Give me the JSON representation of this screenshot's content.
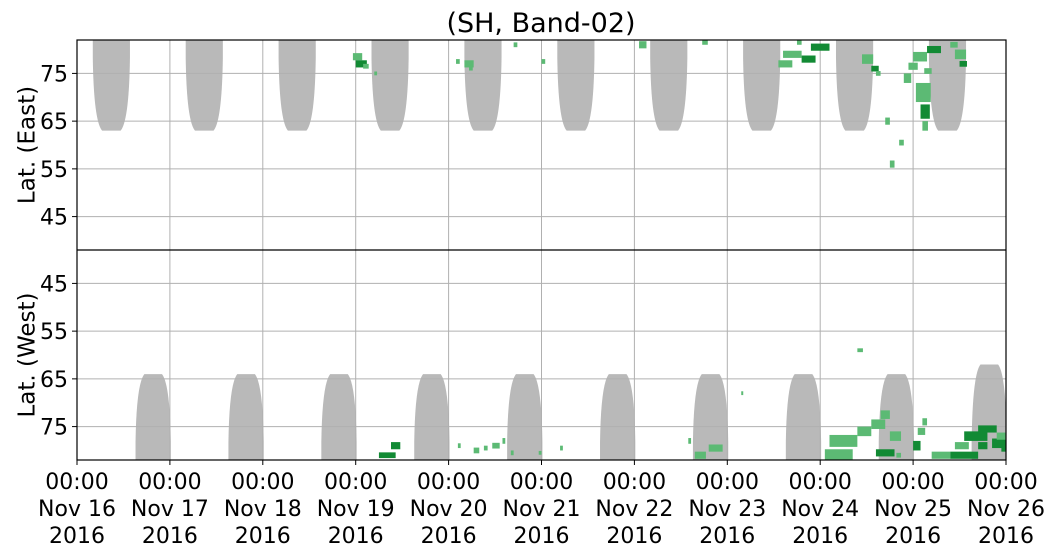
{
  "chart_data": {
    "type": "heatmap",
    "title": "(SH, Band-02)",
    "x_axis": {
      "range": [
        "2016-11-16T00:00",
        "2016-11-26T00:00"
      ],
      "ticks": [
        {
          "time": "00:00",
          "day": "Nov 16",
          "year": "2016"
        },
        {
          "time": "00:00",
          "day": "Nov 17",
          "year": "2016"
        },
        {
          "time": "00:00",
          "day": "Nov 18",
          "year": "2016"
        },
        {
          "time": "00:00",
          "day": "Nov 19",
          "year": "2016"
        },
        {
          "time": "00:00",
          "day": "Nov 20",
          "year": "2016"
        },
        {
          "time": "00:00",
          "day": "Nov 21",
          "year": "2016"
        },
        {
          "time": "00:00",
          "day": "Nov 22",
          "year": "2016"
        },
        {
          "time": "00:00",
          "day": "Nov 23",
          "year": "2016"
        },
        {
          "time": "00:00",
          "day": "Nov 24",
          "year": "2016"
        },
        {
          "time": "00:00",
          "day": "Nov 25",
          "year": "2016"
        },
        {
          "time": "00:00",
          "day": "Nov 26",
          "year": "2016"
        }
      ]
    },
    "panels": [
      {
        "name": "east",
        "ylabel": "Lat. (East)",
        "ylim": [
          38,
          82
        ],
        "ticks": [
          45,
          55,
          65,
          75
        ],
        "tick_labels": [
          "45",
          "55",
          "65",
          "75"
        ]
      },
      {
        "name": "west",
        "ylabel": "Lat. (West)",
        "ylim": [
          82,
          38
        ],
        "ticks": [
          75,
          65,
          55,
          45
        ],
        "tick_labels": [
          "75",
          "65",
          "55",
          "45"
        ]
      }
    ],
    "grid": true,
    "colors": {
      "coverage_gap": "#b9b9b9",
      "detection_light": "#5cba74",
      "detection_dark": "#128a34",
      "grid": "#b0b0b0"
    },
    "gray_coverage_lobes": {
      "east": [
        {
          "day_center": 0.37,
          "half_width_days": 0.2,
          "lat_bottom": 63
        },
        {
          "day_center": 1.37,
          "half_width_days": 0.2,
          "lat_bottom": 63
        },
        {
          "day_center": 2.37,
          "half_width_days": 0.2,
          "lat_bottom": 63
        },
        {
          "day_center": 3.37,
          "half_width_days": 0.2,
          "lat_bottom": 63
        },
        {
          "day_center": 4.37,
          "half_width_days": 0.2,
          "lat_bottom": 63
        },
        {
          "day_center": 5.37,
          "half_width_days": 0.2,
          "lat_bottom": 63
        },
        {
          "day_center": 6.37,
          "half_width_days": 0.2,
          "lat_bottom": 63
        },
        {
          "day_center": 7.37,
          "half_width_days": 0.2,
          "lat_bottom": 63
        },
        {
          "day_center": 8.37,
          "half_width_days": 0.2,
          "lat_bottom": 63
        },
        {
          "day_center": 9.37,
          "half_width_days": 0.2,
          "lat_bottom": 63
        }
      ],
      "west": [
        {
          "day_center": 0.82,
          "half_width_days": 0.19,
          "lat_top": 64
        },
        {
          "day_center": 1.82,
          "half_width_days": 0.19,
          "lat_top": 64
        },
        {
          "day_center": 2.82,
          "half_width_days": 0.19,
          "lat_top": 64
        },
        {
          "day_center": 3.82,
          "half_width_days": 0.19,
          "lat_top": 64
        },
        {
          "day_center": 4.82,
          "half_width_days": 0.19,
          "lat_top": 64
        },
        {
          "day_center": 5.82,
          "half_width_days": 0.19,
          "lat_top": 64
        },
        {
          "day_center": 6.82,
          "half_width_days": 0.19,
          "lat_top": 64
        },
        {
          "day_center": 7.82,
          "half_width_days": 0.19,
          "lat_top": 64
        },
        {
          "day_center": 8.82,
          "half_width_days": 0.19,
          "lat_top": 64
        },
        {
          "day_center": 9.82,
          "half_width_days": 0.19,
          "lat_top": 62
        }
      ]
    },
    "detections": [
      {
        "panel": "east",
        "day": 2.97,
        "lat": 78.5,
        "w": 0.1,
        "h": 1.5,
        "dark": false
      },
      {
        "panel": "east",
        "day": 3.0,
        "lat": 77.0,
        "w": 0.12,
        "h": 1.5,
        "dark": true
      },
      {
        "panel": "east",
        "day": 3.08,
        "lat": 76.5,
        "w": 0.06,
        "h": 1.0,
        "dark": false
      },
      {
        "panel": "east",
        "day": 3.2,
        "lat": 75.0,
        "w": 0.03,
        "h": 0.8,
        "dark": false
      },
      {
        "panel": "west",
        "day": 3.25,
        "lat": 81.0,
        "w": 0.18,
        "h": 1.2,
        "dark": true
      },
      {
        "panel": "west",
        "day": 3.38,
        "lat": 79.0,
        "w": 0.1,
        "h": 1.5,
        "dark": true
      },
      {
        "panel": "east",
        "day": 4.08,
        "lat": 77.5,
        "w": 0.04,
        "h": 1.0,
        "dark": false
      },
      {
        "panel": "east",
        "day": 4.17,
        "lat": 77.0,
        "w": 0.1,
        "h": 1.5,
        "dark": false
      },
      {
        "panel": "east",
        "day": 4.22,
        "lat": 76.0,
        "w": 0.04,
        "h": 0.8,
        "dark": false
      },
      {
        "panel": "west",
        "day": 4.1,
        "lat": 79.0,
        "w": 0.03,
        "h": 1.0,
        "dark": false
      },
      {
        "panel": "west",
        "day": 4.27,
        "lat": 80.0,
        "w": 0.06,
        "h": 1.2,
        "dark": false
      },
      {
        "panel": "west",
        "day": 4.38,
        "lat": 79.5,
        "w": 0.04,
        "h": 1.0,
        "dark": false
      },
      {
        "panel": "west",
        "day": 4.47,
        "lat": 79.0,
        "w": 0.08,
        "h": 1.2,
        "dark": false
      },
      {
        "panel": "west",
        "day": 4.58,
        "lat": 78.0,
        "w": 0.03,
        "h": 1.2,
        "dark": false
      },
      {
        "panel": "west",
        "day": 4.67,
        "lat": 80.5,
        "w": 0.03,
        "h": 1.0,
        "dark": false
      },
      {
        "panel": "east",
        "day": 4.7,
        "lat": 81.0,
        "w": 0.04,
        "h": 1.0,
        "dark": false
      },
      {
        "panel": "east",
        "day": 5.0,
        "lat": 77.5,
        "w": 0.04,
        "h": 1.0,
        "dark": false
      },
      {
        "panel": "west",
        "day": 4.97,
        "lat": 80.5,
        "w": 0.03,
        "h": 0.8,
        "dark": false
      },
      {
        "panel": "west",
        "day": 5.2,
        "lat": 79.5,
        "w": 0.03,
        "h": 1.0,
        "dark": false
      },
      {
        "panel": "east",
        "day": 6.05,
        "lat": 81.0,
        "w": 0.08,
        "h": 1.5,
        "dark": false
      },
      {
        "panel": "east",
        "day": 6.73,
        "lat": 81.5,
        "w": 0.06,
        "h": 1.0,
        "dark": false
      },
      {
        "panel": "west",
        "day": 6.65,
        "lat": 81.0,
        "w": 0.12,
        "h": 1.5,
        "dark": false
      },
      {
        "panel": "west",
        "day": 6.8,
        "lat": 79.5,
        "w": 0.15,
        "h": 1.5,
        "dark": false
      },
      {
        "panel": "west",
        "day": 6.58,
        "lat": 78.0,
        "w": 0.03,
        "h": 1.2,
        "dark": false
      },
      {
        "panel": "west",
        "day": 7.15,
        "lat": 68.0,
        "w": 0.02,
        "h": 0.8,
        "dark": false
      },
      {
        "panel": "east",
        "day": 7.55,
        "lat": 77.0,
        "w": 0.15,
        "h": 1.5,
        "dark": false
      },
      {
        "panel": "east",
        "day": 7.6,
        "lat": 79.0,
        "w": 0.2,
        "h": 1.5,
        "dark": false
      },
      {
        "panel": "east",
        "day": 7.8,
        "lat": 78.0,
        "w": 0.15,
        "h": 1.5,
        "dark": true
      },
      {
        "panel": "east",
        "day": 7.9,
        "lat": 80.5,
        "w": 0.2,
        "h": 1.5,
        "dark": true
      },
      {
        "panel": "east",
        "day": 7.75,
        "lat": 81.5,
        "w": 0.05,
        "h": 1.0,
        "dark": false
      },
      {
        "panel": "west",
        "day": 8.05,
        "lat": 81.0,
        "w": 0.3,
        "h": 2.5,
        "dark": false
      },
      {
        "panel": "west",
        "day": 8.1,
        "lat": 78.0,
        "w": 0.3,
        "h": 2.5,
        "dark": false
      },
      {
        "panel": "west",
        "day": 8.4,
        "lat": 76.0,
        "w": 0.15,
        "h": 2.0,
        "dark": false
      },
      {
        "panel": "west",
        "day": 8.55,
        "lat": 74.5,
        "w": 0.15,
        "h": 2.0,
        "dark": false
      },
      {
        "panel": "west",
        "day": 8.65,
        "lat": 72.5,
        "w": 0.1,
        "h": 1.8,
        "dark": false
      },
      {
        "panel": "east",
        "day": 8.45,
        "lat": 78.0,
        "w": 0.12,
        "h": 2.0,
        "dark": false
      },
      {
        "panel": "east",
        "day": 8.55,
        "lat": 76.0,
        "w": 0.08,
        "h": 1.2,
        "dark": true
      },
      {
        "panel": "east",
        "day": 8.6,
        "lat": 75.0,
        "w": 0.05,
        "h": 1.0,
        "dark": false
      },
      {
        "panel": "east",
        "day": 8.7,
        "lat": 65.0,
        "w": 0.05,
        "h": 1.5,
        "dark": false
      },
      {
        "panel": "east",
        "day": 8.75,
        "lat": 56.0,
        "w": 0.05,
        "h": 1.5,
        "dark": false
      },
      {
        "panel": "east",
        "day": 8.85,
        "lat": 60.5,
        "w": 0.05,
        "h": 1.2,
        "dark": false
      },
      {
        "panel": "east",
        "day": 8.9,
        "lat": 74.0,
        "w": 0.08,
        "h": 2.0,
        "dark": false
      },
      {
        "panel": "east",
        "day": 8.95,
        "lat": 76.5,
        "w": 0.1,
        "h": 1.5,
        "dark": false
      },
      {
        "panel": "east",
        "day": 9.03,
        "lat": 71.0,
        "w": 0.16,
        "h": 4.0,
        "dark": false
      },
      {
        "panel": "east",
        "day": 9.08,
        "lat": 67.0,
        "w": 0.1,
        "h": 3.0,
        "dark": true
      },
      {
        "panel": "east",
        "day": 9.1,
        "lat": 64.0,
        "w": 0.06,
        "h": 2.0,
        "dark": false
      },
      {
        "panel": "east",
        "day": 9.0,
        "lat": 78.5,
        "w": 0.15,
        "h": 2.0,
        "dark": false
      },
      {
        "panel": "east",
        "day": 9.12,
        "lat": 75.5,
        "w": 0.08,
        "h": 1.2,
        "dark": false
      },
      {
        "panel": "east",
        "day": 9.15,
        "lat": 80.0,
        "w": 0.15,
        "h": 1.5,
        "dark": true
      },
      {
        "panel": "east",
        "day": 9.45,
        "lat": 79.0,
        "w": 0.12,
        "h": 2.0,
        "dark": false
      },
      {
        "panel": "east",
        "day": 9.5,
        "lat": 77.0,
        "w": 0.08,
        "h": 1.2,
        "dark": true
      },
      {
        "panel": "east",
        "day": 9.4,
        "lat": 81.0,
        "w": 0.08,
        "h": 1.2,
        "dark": false
      },
      {
        "panel": "west",
        "day": 8.6,
        "lat": 80.5,
        "w": 0.2,
        "h": 1.5,
        "dark": true
      },
      {
        "panel": "west",
        "day": 8.75,
        "lat": 77.0,
        "w": 0.12,
        "h": 2.0,
        "dark": false
      },
      {
        "panel": "west",
        "day": 8.82,
        "lat": 81.0,
        "w": 0.05,
        "h": 1.0,
        "dark": false
      },
      {
        "panel": "west",
        "day": 8.4,
        "lat": 59.0,
        "w": 0.06,
        "h": 0.8,
        "dark": false
      },
      {
        "panel": "west",
        "day": 9.0,
        "lat": 79.0,
        "w": 0.08,
        "h": 2.0,
        "dark": true
      },
      {
        "panel": "west",
        "day": 9.05,
        "lat": 76.0,
        "w": 0.08,
        "h": 1.5,
        "dark": false
      },
      {
        "panel": "west",
        "day": 9.1,
        "lat": 74.0,
        "w": 0.05,
        "h": 1.5,
        "dark": false
      },
      {
        "panel": "west",
        "day": 9.2,
        "lat": 81.0,
        "w": 0.2,
        "h": 1.5,
        "dark": false
      },
      {
        "panel": "west",
        "day": 9.4,
        "lat": 81.0,
        "w": 0.3,
        "h": 1.5,
        "dark": true
      },
      {
        "panel": "west",
        "day": 9.45,
        "lat": 79.0,
        "w": 0.15,
        "h": 1.5,
        "dark": false
      },
      {
        "panel": "west",
        "day": 9.55,
        "lat": 77.0,
        "w": 0.25,
        "h": 2.0,
        "dark": true
      },
      {
        "panel": "west",
        "day": 9.7,
        "lat": 79.0,
        "w": 0.1,
        "h": 1.5,
        "dark": true
      },
      {
        "panel": "west",
        "day": 9.7,
        "lat": 75.5,
        "w": 0.2,
        "h": 1.5,
        "dark": true
      },
      {
        "panel": "west",
        "day": 9.85,
        "lat": 78.5,
        "w": 0.15,
        "h": 2.0,
        "dark": true
      },
      {
        "panel": "west",
        "day": 9.9,
        "lat": 77.0,
        "w": 0.1,
        "h": 1.5,
        "dark": false
      },
      {
        "panel": "west",
        "day": 9.95,
        "lat": 79.5,
        "w": 0.05,
        "h": 1.5,
        "dark": true
      }
    ]
  }
}
